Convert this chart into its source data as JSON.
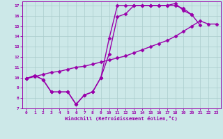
{
  "bg_color": "#cce8e8",
  "line_color": "#9900aa",
  "grid_color": "#aacccc",
  "xlabel": "Windchill (Refroidissement éolien,°C)",
  "xlim": [
    -0.5,
    23.5
  ],
  "ylim": [
    7,
    17.4
  ],
  "yticks": [
    7,
    8,
    9,
    10,
    11,
    12,
    13,
    14,
    15,
    16,
    17
  ],
  "xticks": [
    0,
    1,
    2,
    3,
    4,
    5,
    6,
    7,
    8,
    9,
    10,
    11,
    12,
    13,
    14,
    15,
    16,
    17,
    18,
    19,
    20,
    21,
    22,
    23
  ],
  "line1_x": [
    0,
    1,
    2,
    3,
    4,
    5,
    6,
    7,
    8,
    9,
    10,
    11,
    12,
    13,
    14,
    15,
    16,
    17,
    18,
    19,
    20,
    21
  ],
  "line1_y": [
    9.9,
    10.2,
    9.8,
    8.6,
    8.6,
    8.6,
    7.4,
    8.3,
    8.6,
    10.0,
    12.3,
    15.9,
    16.2,
    17.0,
    17.0,
    17.0,
    17.0,
    17.0,
    17.0,
    16.7,
    16.1,
    15.1
  ],
  "line2_x": [
    0,
    1,
    2,
    3,
    4,
    5,
    6,
    7,
    8,
    9,
    10,
    11,
    12,
    13,
    14,
    15,
    16,
    17,
    18,
    19,
    20
  ],
  "line2_y": [
    9.9,
    10.2,
    9.8,
    8.6,
    8.6,
    8.6,
    7.4,
    8.3,
    8.6,
    10.0,
    13.8,
    17.0,
    17.0,
    17.0,
    17.0,
    17.0,
    17.0,
    17.0,
    17.2,
    16.5,
    16.1
  ],
  "line3_x": [
    0,
    1,
    2,
    3,
    4,
    5,
    6,
    7,
    8,
    9,
    10,
    11,
    12,
    13,
    14,
    15,
    16,
    17,
    18,
    19,
    20,
    21,
    22,
    23
  ],
  "line3_y": [
    9.9,
    10.1,
    10.3,
    10.5,
    10.6,
    10.8,
    11.0,
    11.1,
    11.3,
    11.5,
    11.7,
    11.9,
    12.1,
    12.4,
    12.7,
    13.0,
    13.3,
    13.6,
    14.0,
    14.5,
    15.0,
    15.5,
    15.2,
    15.2
  ],
  "marker": "D",
  "markersize": 2.5,
  "linewidth": 1.0
}
